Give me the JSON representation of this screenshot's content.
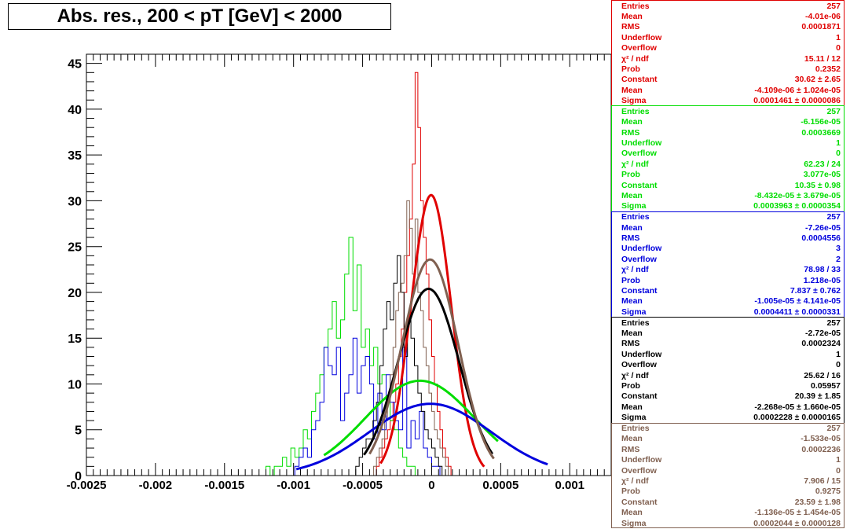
{
  "title": "Abs. res., 200 < pT [GeV] < 2000",
  "chart_data": {
    "type": "histogram",
    "title": "Abs. res., 200 < pT [GeV] < 2000",
    "xlabel": "",
    "ylabel": "",
    "xlim": [
      -0.0025,
      0.0013
    ],
    "ylim": [
      0,
      46
    ],
    "x_ticks": [
      "-0.0025",
      "-0.002",
      "-0.0015",
      "-0.001",
      "-0.0005",
      "0",
      "0.0005",
      "0.001"
    ],
    "y_ticks": [
      "0",
      "5",
      "10",
      "15",
      "20",
      "25",
      "30",
      "35",
      "40",
      "45"
    ],
    "series": [
      {
        "color": "#e00000",
        "bin_width": 2e-05,
        "start": -0.0004,
        "counts": [
          1,
          2,
          3,
          4,
          5,
          6,
          8,
          10,
          13,
          16,
          20,
          24,
          28,
          34,
          44,
          38,
          30,
          26,
          22,
          17,
          13,
          10,
          7,
          5,
          3,
          2,
          1
        ],
        "fit": {
          "constant": 30.62,
          "mean": -4.109e-06,
          "sigma": 0.0001461,
          "range": [
            -0.00037,
            0.00038
          ]
        }
      },
      {
        "color": "#00dd00",
        "bin_width": 3e-05,
        "start": -0.0012,
        "counts": [
          1,
          0,
          1,
          1,
          2,
          1,
          3,
          2,
          3,
          5,
          4,
          7,
          9,
          11,
          14,
          16,
          19,
          15,
          17,
          22,
          26,
          18,
          23,
          14,
          16,
          12,
          14,
          10,
          11,
          8,
          6,
          5,
          3,
          2,
          1,
          1
        ],
        "fit": {
          "constant": 10.35,
          "mean": -8.432e-05,
          "sigma": 0.0003963,
          "range": [
            -0.00078,
            0.00048
          ]
        }
      },
      {
        "color": "#0000dd",
        "bin_width": 3e-05,
        "start": -0.00099,
        "counts": [
          1,
          2,
          3,
          2,
          5,
          6,
          8,
          14,
          12,
          11,
          14,
          6,
          9,
          11,
          15,
          9,
          12,
          13,
          10,
          4,
          9,
          5,
          11,
          8,
          6,
          5,
          14,
          3,
          6,
          4,
          7,
          3,
          2,
          1,
          1
        ],
        "fit": {
          "constant": 7.837,
          "mean": -1.005e-05,
          "sigma": 0.0004411,
          "range": [
            -0.00098,
            0.00084
          ]
        }
      },
      {
        "color": "#000000",
        "bin_width": 2.5e-05,
        "start": -0.00055,
        "counts": [
          1,
          2,
          3,
          4,
          4,
          6,
          8,
          12,
          16,
          19,
          17,
          21,
          24,
          20,
          13,
          17,
          15,
          12,
          9,
          7,
          5,
          4,
          3,
          2,
          1
        ],
        "fit": {
          "constant": 20.39,
          "mean": -2.268e-05,
          "sigma": 0.0002228,
          "range": [
            -0.00049,
            0.00044
          ]
        }
      },
      {
        "color": "#806050",
        "bin_width": 2e-05,
        "start": -0.00042,
        "counts": [
          1,
          2,
          3,
          4,
          6,
          8,
          11,
          14,
          18,
          20,
          21,
          24,
          30,
          27,
          22,
          28,
          20,
          18,
          14,
          12,
          9,
          7,
          5,
          4,
          3,
          2,
          1
        ],
        "fit": {
          "constant": 23.59,
          "mean": -1.136e-05,
          "sigma": 0.0002044,
          "range": [
            -0.00045,
            0.00045
          ]
        }
      }
    ]
  },
  "stats": [
    {
      "color": "#e00000",
      "rows": [
        {
          "k": "Entries",
          "v": "257"
        },
        {
          "k": "Mean",
          "v": "-4.01e-06"
        },
        {
          "k": "RMS",
          "v": "0.0001871"
        },
        {
          "k": "Underflow",
          "v": "1"
        },
        {
          "k": "Overflow",
          "v": "0"
        },
        {
          "k": "χ² / ndf",
          "v": "15.11 / 12"
        },
        {
          "k": "Prob",
          "v": "0.2352"
        },
        {
          "k": "Constant",
          "v": "30.62  ± 2.65"
        },
        {
          "k": "Mean",
          "v": "-4.109e-06  ± 1.024e-05"
        },
        {
          "k": "Sigma",
          "v": "0.0001461  ± 0.0000086"
        }
      ]
    },
    {
      "color": "#00dd00",
      "rows": [
        {
          "k": "Entries",
          "v": "257"
        },
        {
          "k": "Mean",
          "v": "-6.156e-05"
        },
        {
          "k": "RMS",
          "v": "0.0003669"
        },
        {
          "k": "Underflow",
          "v": "1"
        },
        {
          "k": "Overflow",
          "v": "0"
        },
        {
          "k": "χ² / ndf",
          "v": "62.23 / 24"
        },
        {
          "k": "Prob",
          "v": "3.077e-05"
        },
        {
          "k": "Constant",
          "v": "10.35  ± 0.98"
        },
        {
          "k": "Mean",
          "v": "-8.432e-05  ± 3.679e-05"
        },
        {
          "k": "Sigma",
          "v": "0.0003963  ± 0.0000354"
        }
      ]
    },
    {
      "color": "#0000dd",
      "rows": [
        {
          "k": "Entries",
          "v": "257"
        },
        {
          "k": "Mean",
          "v": "-7.26e-05"
        },
        {
          "k": "RMS",
          "v": "0.0004556"
        },
        {
          "k": "Underflow",
          "v": "3"
        },
        {
          "k": "Overflow",
          "v": "2"
        },
        {
          "k": "χ² / ndf",
          "v": "78.98 / 33"
        },
        {
          "k": "Prob",
          "v": "1.218e-05"
        },
        {
          "k": "Constant",
          "v": "7.837  ± 0.762"
        },
        {
          "k": "Mean",
          "v": "-1.005e-05  ± 4.141e-05"
        },
        {
          "k": "Sigma",
          "v": "0.0004411  ± 0.0000331"
        }
      ]
    },
    {
      "color": "#000000",
      "rows": [
        {
          "k": "Entries",
          "v": "257"
        },
        {
          "k": "Mean",
          "v": "-2.72e-05"
        },
        {
          "k": "RMS",
          "v": "0.0002324"
        },
        {
          "k": "Underflow",
          "v": "1"
        },
        {
          "k": "Overflow",
          "v": "0"
        },
        {
          "k": "χ² / ndf",
          "v": "25.62 / 16"
        },
        {
          "k": "Prob",
          "v": "0.05957"
        },
        {
          "k": "Constant",
          "v": "20.39  ± 1.85"
        },
        {
          "k": "Mean",
          "v": "-2.268e-05  ± 1.660e-05"
        },
        {
          "k": "Sigma",
          "v": "0.0002228  ± 0.0000165"
        }
      ]
    },
    {
      "color": "#806050",
      "rows": [
        {
          "k": "Entries",
          "v": "257"
        },
        {
          "k": "Mean",
          "v": "-1.533e-05"
        },
        {
          "k": "RMS",
          "v": "0.0002236"
        },
        {
          "k": "Underflow",
          "v": "1"
        },
        {
          "k": "Overflow",
          "v": "0"
        },
        {
          "k": "χ² / ndf",
          "v": "7.906 / 15"
        },
        {
          "k": "Prob",
          "v": "0.9275"
        },
        {
          "k": "Constant",
          "v": "23.59  ± 1.98"
        },
        {
          "k": "Mean",
          "v": "-1.136e-05  ± 1.454e-05"
        },
        {
          "k": "Sigma",
          "v": "0.0002044  ± 0.0000128"
        }
      ]
    }
  ]
}
